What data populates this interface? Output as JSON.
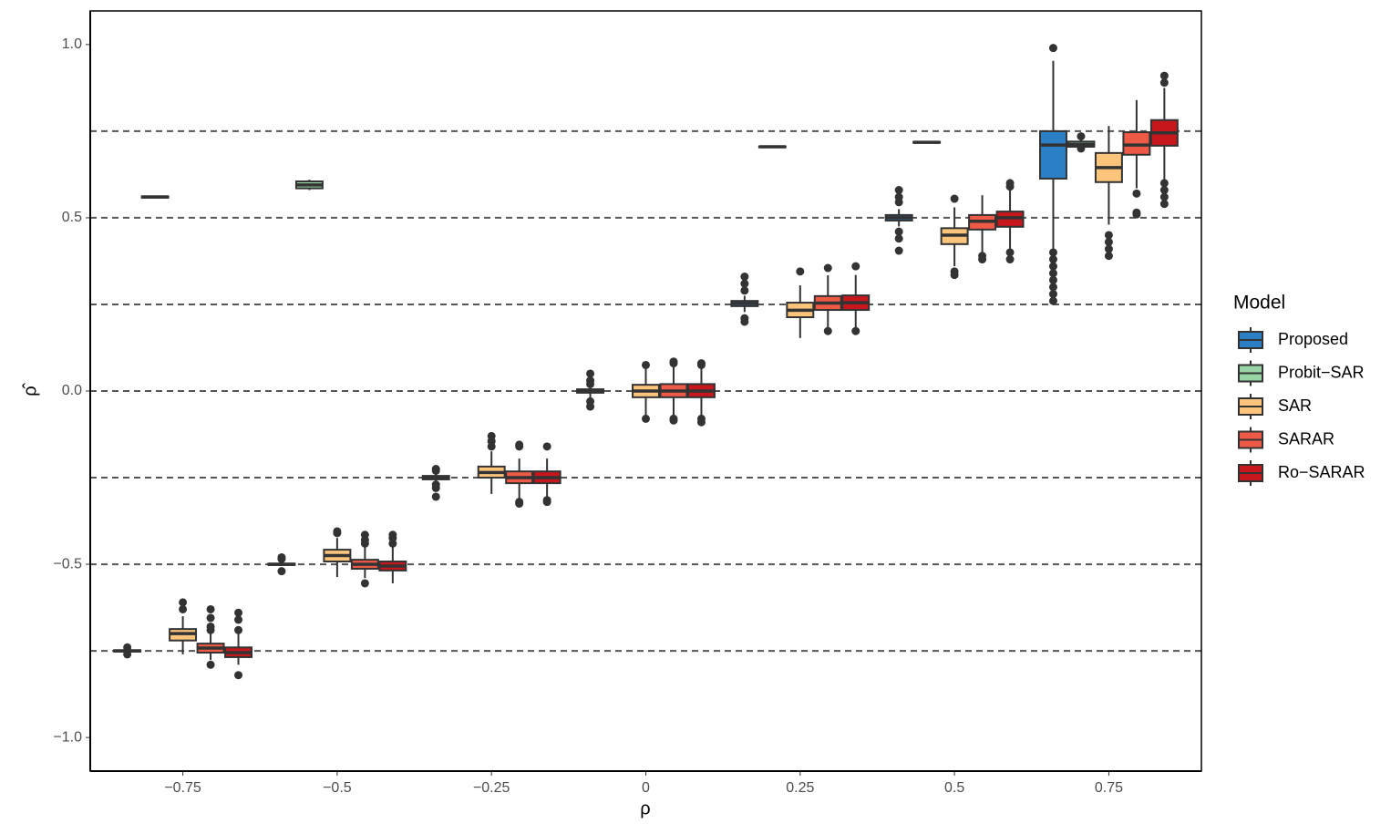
{
  "chart_data": {
    "type": "boxplot",
    "x_label": "ρ",
    "y_label": "ρ̂",
    "legend_title": "Model",
    "legend_position": "right",
    "categories": [
      "−0.75",
      "−0.5",
      "−0.25",
      "0",
      "0.25",
      "0.5",
      "0.75"
    ],
    "ylim": [
      -1.097,
      1.097
    ],
    "yticks": [
      {
        "value": -1,
        "label": "−1.0"
      },
      {
        "value": -0.5,
        "label": "−0.5"
      },
      {
        "value": 0,
        "label": "0.0"
      },
      {
        "value": 0.5,
        "label": "0.5"
      },
      {
        "value": 1,
        "label": "1.0"
      }
    ],
    "hlines": [
      -0.75,
      -0.5,
      -0.25,
      0,
      0.25,
      0.5,
      0.75
    ],
    "series": [
      {
        "name": "Proposed",
        "color": "#2b7fc4",
        "values": [
          {
            "low": -0.755,
            "q1": -0.752,
            "median": -0.75,
            "q3": -0.748,
            "high": -0.745,
            "outliers": [
              -0.74,
              -0.76
            ]
          },
          {
            "low": -0.505,
            "q1": -0.502,
            "median": -0.5,
            "q3": -0.498,
            "high": -0.495,
            "outliers": [
              -0.48,
              -0.485,
              -0.52
            ]
          },
          {
            "low": -0.27,
            "q1": -0.255,
            "median": -0.25,
            "q3": -0.245,
            "high": -0.235,
            "outliers": [
              -0.225,
              -0.23,
              -0.27,
              -0.28,
              -0.305
            ]
          },
          {
            "low": -0.02,
            "q1": -0.005,
            "median": 0,
            "q3": 0.005,
            "high": 0.02,
            "outliers": [
              0.03,
              0.05,
              0.02,
              -0.03,
              -0.045
            ]
          },
          {
            "low": 0.228,
            "q1": 0.245,
            "median": 0.253,
            "q3": 0.26,
            "high": 0.275,
            "outliers": [
              0.29,
              0.31,
              0.33,
              0.21,
              0.2
            ]
          },
          {
            "low": 0.475,
            "q1": 0.492,
            "median": 0.5,
            "q3": 0.508,
            "high": 0.525,
            "outliers": [
              0.545,
              0.56,
              0.58,
              0.46,
              0.44,
              0.405
            ]
          },
          {
            "low": 0.405,
            "q1": 0.613,
            "median": 0.71,
            "q3": 0.75,
            "high": 0.953,
            "outliers": [
              0.99,
              0.4,
              0.38,
              0.36,
              0.34,
              0.32,
              0.3,
              0.28,
              0.26
            ]
          }
        ]
      },
      {
        "name": "Probit−SAR",
        "color": "#99d5a4",
        "values": [
          {
            "low": 0.557,
            "q1": 0.558,
            "median": 0.56,
            "q3": 0.562,
            "high": 0.563,
            "outliers": []
          },
          {
            "low": 0.58,
            "q1": 0.585,
            "median": 0.595,
            "q3": 0.605,
            "high": 0.61,
            "outliers": []
          },
          null,
          null,
          {
            "low": 0.703,
            "q1": 0.704,
            "median": 0.705,
            "q3": 0.706,
            "high": 0.707,
            "outliers": []
          },
          {
            "low": 0.716,
            "q1": 0.717,
            "median": 0.718,
            "q3": 0.719,
            "high": 0.72,
            "outliers": []
          },
          {
            "low": 0.695,
            "q1": 0.705,
            "median": 0.712,
            "q3": 0.72,
            "high": 0.74,
            "outliers": [
              0.735,
              0.7
            ]
          }
        ]
      },
      {
        "name": "SAR",
        "color": "#fdc57c",
        "values": [
          {
            "low": -0.76,
            "q1": -0.72,
            "median": -0.7,
            "q3": -0.687,
            "high": -0.65,
            "outliers": [
              -0.61,
              -0.63
            ]
          },
          {
            "low": -0.537,
            "q1": -0.492,
            "median": -0.475,
            "q3": -0.458,
            "high": -0.424,
            "outliers": [
              -0.405,
              -0.41
            ]
          },
          {
            "low": -0.297,
            "q1": -0.25,
            "median": -0.235,
            "q3": -0.218,
            "high": -0.174,
            "outliers": [
              -0.13,
              -0.145,
              -0.16
            ]
          },
          {
            "low": -0.07,
            "q1": -0.018,
            "median": 0,
            "q3": 0.018,
            "high": 0.07,
            "outliers": [
              0.075,
              -0.08
            ]
          },
          {
            "low": 0.153,
            "q1": 0.213,
            "median": 0.233,
            "q3": 0.255,
            "high": 0.305,
            "outliers": [
              0.345
            ]
          },
          {
            "low": 0.36,
            "q1": 0.424,
            "median": 0.45,
            "q3": 0.47,
            "high": 0.53,
            "outliers": [
              0.555,
              0.345,
              0.335
            ]
          },
          {
            "low": 0.48,
            "q1": 0.603,
            "median": 0.645,
            "q3": 0.687,
            "high": 0.765,
            "outliers": [
              0.45,
              0.43,
              0.41,
              0.39
            ]
          }
        ]
      },
      {
        "name": "SARAR",
        "color": "#ee5a45",
        "values": [
          {
            "low": -0.776,
            "q1": -0.755,
            "median": -0.742,
            "q3": -0.729,
            "high": -0.68,
            "outliers": [
              -0.63,
              -0.655,
              -0.68,
              -0.69,
              -0.79
            ]
          },
          {
            "low": -0.54,
            "q1": -0.513,
            "median": -0.5,
            "q3": -0.487,
            "high": -0.445,
            "outliers": [
              -0.415,
              -0.43,
              -0.44,
              -0.555
            ]
          },
          {
            "low": -0.313,
            "q1": -0.266,
            "median": -0.25,
            "q3": -0.232,
            "high": -0.195,
            "outliers": [
              -0.155,
              -0.16,
              -0.32,
              -0.325
            ]
          },
          {
            "low": -0.07,
            "q1": -0.018,
            "median": 0,
            "q3": 0.02,
            "high": 0.07,
            "outliers": [
              0.08,
              0.085,
              -0.08,
              -0.085
            ]
          },
          {
            "low": 0.18,
            "q1": 0.234,
            "median": 0.254,
            "q3": 0.274,
            "high": 0.334,
            "outliers": [
              0.355,
              0.173
            ]
          },
          {
            "low": 0.4,
            "q1": 0.466,
            "median": 0.49,
            "q3": 0.508,
            "high": 0.565,
            "outliers": [
              0.39,
              0.38
            ]
          },
          {
            "low": 0.585,
            "q1": 0.682,
            "median": 0.71,
            "q3": 0.747,
            "high": 0.84,
            "outliers": [
              0.57,
              0.515,
              0.51
            ]
          }
        ]
      },
      {
        "name": "Ro−SARAR",
        "color": "#c8171c",
        "values": [
          {
            "low": -0.79,
            "q1": -0.768,
            "median": -0.755,
            "q3": -0.74,
            "high": -0.7,
            "outliers": [
              -0.64,
              -0.66,
              -0.69,
              -0.82
            ]
          },
          {
            "low": -0.555,
            "q1": -0.518,
            "median": -0.505,
            "q3": -0.492,
            "high": -0.445,
            "outliers": [
              -0.415,
              -0.425,
              -0.44
            ]
          },
          {
            "low": -0.31,
            "q1": -0.266,
            "median": -0.25,
            "q3": -0.232,
            "high": -0.195,
            "outliers": [
              -0.16,
              -0.315,
              -0.32
            ]
          },
          {
            "low": -0.07,
            "q1": -0.018,
            "median": 0,
            "q3": 0.02,
            "high": 0.07,
            "outliers": [
              0.075,
              0.08,
              -0.08,
              -0.09
            ]
          },
          {
            "low": 0.18,
            "q1": 0.234,
            "median": 0.255,
            "q3": 0.276,
            "high": 0.335,
            "outliers": [
              0.36,
              0.173
            ]
          },
          {
            "low": 0.41,
            "q1": 0.474,
            "median": 0.5,
            "q3": 0.518,
            "high": 0.585,
            "outliers": [
              0.6,
              0.59,
              0.4,
              0.38
            ]
          },
          {
            "low": 0.61,
            "q1": 0.708,
            "median": 0.745,
            "q3": 0.782,
            "high": 0.875,
            "outliers": [
              0.91,
              0.89,
              0.6,
              0.58,
              0.56,
              0.54
            ]
          }
        ]
      }
    ]
  }
}
